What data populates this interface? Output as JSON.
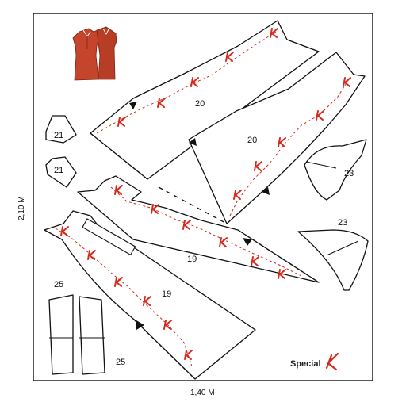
{
  "dimensions": {
    "height": "2,10 M",
    "width": "1,40 M"
  },
  "brand": {
    "name": "Special",
    "logo_color": "#d42a1e"
  },
  "pieces": [
    {
      "id": "20a",
      "label": "20"
    },
    {
      "id": "20b",
      "label": "20"
    },
    {
      "id": "21a",
      "label": "21"
    },
    {
      "id": "21b",
      "label": "21"
    },
    {
      "id": "23a",
      "label": "23"
    },
    {
      "id": "23b",
      "label": "23"
    },
    {
      "id": "19a",
      "label": "19"
    },
    {
      "id": "19b",
      "label": "19"
    },
    {
      "id": "25",
      "label": "25"
    },
    {
      "id": "25-top",
      "label": "25"
    }
  ],
  "colors": {
    "dress": "#c5452c",
    "grain_line": "#d42a1e",
    "outline": "#111111"
  }
}
